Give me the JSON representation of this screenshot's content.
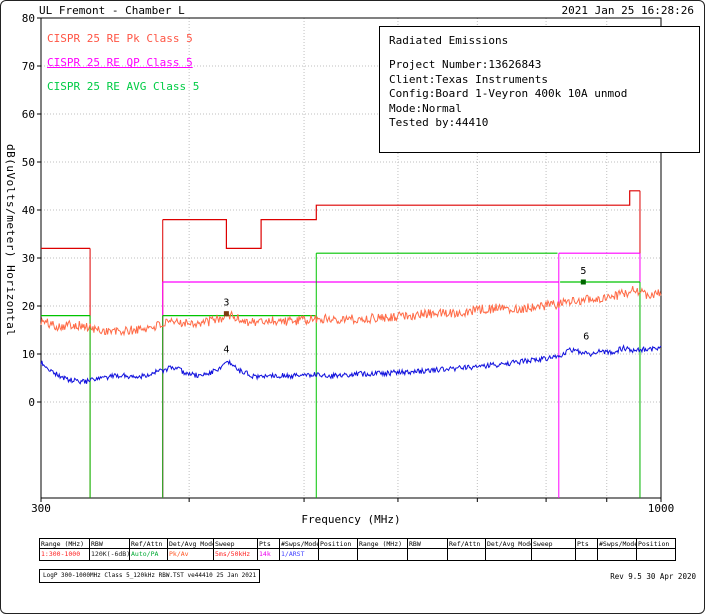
{
  "window": {
    "title": "UL Fremont - Chamber L",
    "datetime": "2021 Jan 25   16:28:26"
  },
  "legend": [
    {
      "id": "pk",
      "label": "CISPR 25 RE Pk Class 5",
      "color": "#ff5544",
      "underline": false
    },
    {
      "id": "qp",
      "label": "CISPR 25 RE QP Class 5",
      "color": "#ff00ff",
      "underline": true
    },
    {
      "id": "avg",
      "label": "CISPR 25 RE AVG Class 5",
      "color": "#00cc44",
      "underline": false
    }
  ],
  "info_box": {
    "title": "Radiated Emissions",
    "lines": [
      "Project Number:13626843",
      "Client:Texas Instruments",
      "Config:Board 1-Veyron 400k 10A unmod",
      "Mode:Normal",
      "Tested by:44410"
    ]
  },
  "chart_data": {
    "type": "line",
    "xlabel": "Frequency (MHz)",
    "ylabel": "dB(uVolts/meter) Horizontal",
    "x_scale": "log",
    "xlim": [
      300,
      1000
    ],
    "ylim_drawn": [
      -20,
      80
    ],
    "y_ticks": [
      0,
      10,
      20,
      30,
      40,
      50,
      60,
      70,
      80
    ],
    "x_ticks_labeled": [
      300,
      1000
    ],
    "x_gridlines": [
      400,
      500,
      600,
      700,
      800,
      900
    ],
    "grid": true,
    "limit_lines": [
      {
        "name": "CISPR 25 RE Pk Class 5 limit",
        "color": "#dd0000",
        "segments": [
          [
            [
              300,
              32
            ],
            [
              330,
              32
            ]
          ],
          [
            [
              380,
              38
            ],
            [
              430,
              38
            ],
            [
              430,
              32
            ],
            [
              460,
              32
            ],
            [
              460,
              38
            ],
            [
              512,
              38
            ],
            [
              512,
              41
            ],
            [
              941,
              41
            ],
            [
              941,
              44
            ],
            [
              960,
              44
            ]
          ]
        ],
        "drops": [
          [
            330,
            32
          ],
          [
            380,
            38
          ],
          [
            960,
            44
          ]
        ]
      },
      {
        "name": "CISPR 25 RE QP Class 5 limit",
        "color": "#ff00ff",
        "segments": [
          [
            [
              380,
              25
            ],
            [
              820,
              25
            ]
          ],
          [
            [
              820,
              31
            ],
            [
              960,
              31
            ]
          ]
        ],
        "drops": [
          [
            380,
            25
          ],
          [
            820,
            31
          ],
          [
            960,
            31
          ]
        ]
      },
      {
        "name": "CISPR 25 RE AVG Class 5 limit",
        "color": "#00c400",
        "segments": [
          [
            [
              300,
              18
            ],
            [
              330,
              18
            ]
          ],
          [
            [
              380,
              18
            ],
            [
              512,
              18
            ]
          ],
          [
            [
              512,
              31
            ],
            [
              818,
              31
            ]
          ],
          [
            [
              822,
              25
            ],
            [
              960,
              25
            ]
          ]
        ],
        "drops": [
          [
            330,
            18
          ],
          [
            380,
            18
          ],
          [
            512,
            31
          ],
          [
            960,
            25
          ]
        ]
      }
    ],
    "traces": [
      {
        "name": "pk-measurement",
        "color": "#ff6b47",
        "noise_db": 1.0,
        "seed": 101,
        "points": [
          [
            300,
            16.8
          ],
          [
            310,
            15.8
          ],
          [
            320,
            16.2
          ],
          [
            335,
            15.0
          ],
          [
            350,
            14.6
          ],
          [
            365,
            15.2
          ],
          [
            380,
            16.2
          ],
          [
            395,
            16.7
          ],
          [
            410,
            16.4
          ],
          [
            425,
            17.4
          ],
          [
            432,
            18.2
          ],
          [
            442,
            17.1
          ],
          [
            455,
            16.6
          ],
          [
            470,
            17.0
          ],
          [
            490,
            16.8
          ],
          [
            510,
            17.2
          ],
          [
            530,
            17.4
          ],
          [
            555,
            17.2
          ],
          [
            580,
            17.6
          ],
          [
            610,
            18.0
          ],
          [
            640,
            18.4
          ],
          [
            670,
            18.6
          ],
          [
            700,
            19.2
          ],
          [
            730,
            19.6
          ],
          [
            760,
            19.4
          ],
          [
            790,
            20.0
          ],
          [
            820,
            20.4
          ],
          [
            845,
            21.0
          ],
          [
            870,
            21.6
          ],
          [
            890,
            21.2
          ],
          [
            910,
            21.8
          ],
          [
            930,
            22.6
          ],
          [
            950,
            23.4
          ],
          [
            965,
            22.6
          ],
          [
            980,
            22.2
          ],
          [
            1000,
            23.0
          ]
        ]
      },
      {
        "name": "avg-measurement",
        "color": "#1111dd",
        "noise_db": 0.55,
        "seed": 202,
        "points": [
          [
            300,
            8.2
          ],
          [
            308,
            6.0
          ],
          [
            316,
            4.6
          ],
          [
            326,
            4.2
          ],
          [
            336,
            4.8
          ],
          [
            350,
            5.6
          ],
          [
            362,
            5.2
          ],
          [
            375,
            6.2
          ],
          [
            388,
            7.2
          ],
          [
            398,
            6.0
          ],
          [
            408,
            5.4
          ],
          [
            420,
            6.4
          ],
          [
            432,
            8.2
          ],
          [
            442,
            6.4
          ],
          [
            455,
            5.2
          ],
          [
            470,
            5.6
          ],
          [
            490,
            5.4
          ],
          [
            510,
            5.8
          ],
          [
            530,
            5.4
          ],
          [
            555,
            5.8
          ],
          [
            580,
            6.0
          ],
          [
            610,
            6.2
          ],
          [
            640,
            6.6
          ],
          [
            670,
            7.0
          ],
          [
            700,
            7.4
          ],
          [
            730,
            7.8
          ],
          [
            760,
            8.4
          ],
          [
            790,
            8.8
          ],
          [
            820,
            9.6
          ],
          [
            840,
            11.0
          ],
          [
            858,
            10.4
          ],
          [
            872,
            10.0
          ],
          [
            890,
            10.6
          ],
          [
            910,
            10.4
          ],
          [
            930,
            11.2
          ],
          [
            950,
            10.8
          ],
          [
            975,
            11.0
          ],
          [
            1000,
            11.2
          ]
        ]
      }
    ],
    "markers": [
      {
        "label": "3",
        "f": 430,
        "db": 18.4,
        "square": "#7a3b10"
      },
      {
        "label": "4",
        "f": 430,
        "db": 8.6,
        "square": null
      },
      {
        "label": "5",
        "f": 860,
        "db": 25.0,
        "square": "#006600"
      },
      {
        "label": "6",
        "f": 865,
        "db": 11.4,
        "square": null
      }
    ]
  },
  "settings_table": {
    "headers": [
      "Range (MHz)",
      "RBW",
      "Ref/Attn",
      "Det/Avg Mode",
      "Sweep",
      "Pts",
      "#Swps/Mode",
      "Position"
    ],
    "rows": [
      [
        {
          "text": "1:300-1000",
          "color": "#ff2222"
        },
        {
          "text": "120K(-6dB)",
          "color": "#222222"
        },
        {
          "text": "Auto/PA",
          "color": "#00aa33"
        },
        {
          "text": "Pk/Av",
          "color": "#ff5522"
        },
        {
          "text": "5ms/50kHz",
          "color": "#ff2222"
        },
        {
          "text": "14k",
          "color": "#ee00ee"
        },
        {
          "text": "1/ARST",
          "color": "#4444ff"
        },
        {
          "text": "",
          "color": "#000000"
        }
      ],
      [
        {
          "text": "",
          "color": "#000000"
        },
        {
          "text": "",
          "color": "#000000"
        },
        {
          "text": "",
          "color": "#000000"
        },
        {
          "text": "",
          "color": "#000000"
        },
        {
          "text": "",
          "color": "#000000"
        },
        {
          "text": "",
          "color": "#000000"
        },
        {
          "text": "",
          "color": "#000000"
        },
        {
          "text": "",
          "color": "#000000"
        }
      ]
    ]
  },
  "footer": {
    "left": "LogP 300-1000MHz Class 5_120kHz RBW.TST ve44410 25 Jan 2021",
    "right": "Rev 9.5 30 Apr 2020"
  }
}
